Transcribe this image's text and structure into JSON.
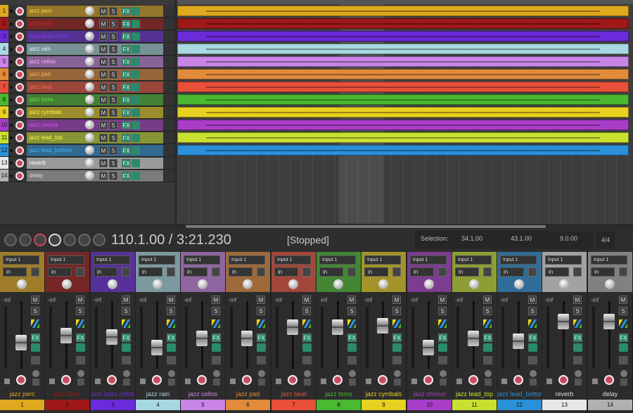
{
  "tracks": [
    {
      "number": 1,
      "name": "jazz perc",
      "color": "#e0a81e"
    },
    {
      "number": 2,
      "name": "jazz bass",
      "color": "#a01818"
    },
    {
      "number": 3,
      "name": "jazz bass rythm",
      "color": "#6a2bd8"
    },
    {
      "number": 4,
      "name": "jazz rain",
      "color": "#a8d8e2"
    },
    {
      "number": 5,
      "name": "jazz cellos",
      "color": "#c884e6"
    },
    {
      "number": 6,
      "name": "jazz pad",
      "color": "#e08a3a"
    },
    {
      "number": 7,
      "name": "jazz beat",
      "color": "#e8503a"
    },
    {
      "number": 8,
      "name": "jazz toms",
      "color": "#4ab830"
    },
    {
      "number": 9,
      "name": "jazz cymbals",
      "color": "#e8d020"
    },
    {
      "number": 10,
      "name": "jazz chorus",
      "color": "#a83ec8"
    },
    {
      "number": 11,
      "name": "jazz lead_top",
      "color": "#c8e030"
    },
    {
      "number": 12,
      "name": "jazz lead_bottom",
      "color": "#2a90d8"
    },
    {
      "number": 13,
      "name": "reverb",
      "color": "#e8e8e8"
    },
    {
      "number": 14,
      "name": "delay",
      "color": "#b0b0b0"
    }
  ],
  "buttons": {
    "mute": "M",
    "solo": "S",
    "fx": "FX"
  },
  "mixer": {
    "input": "Input 1",
    "monitor": "in",
    "volume": "-inf"
  },
  "transport": {
    "position": "110.1.00 / 3:21.230",
    "state": "[Stopped]",
    "selection_label": "Selection:",
    "selection_start": "34.1.00",
    "selection_end": "43.1.00",
    "selection_length": "9.0.00",
    "time_signature": "4/4"
  }
}
